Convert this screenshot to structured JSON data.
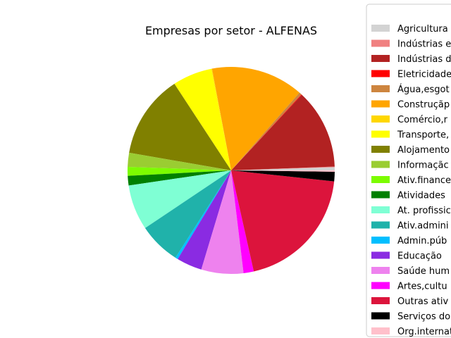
{
  "chart_data": {
    "type": "pie",
    "title": "Empresas por setor - ALFENAS",
    "legend_position": "right",
    "slices": [
      {
        "label": "Agricultura",
        "value": 0.5,
        "color": "#d3d3d3"
      },
      {
        "label": "Indústrias e",
        "value": 0.1,
        "color": "#f08080"
      },
      {
        "label": "Indústrias d",
        "value": 12.5,
        "color": "#b22222"
      },
      {
        "label": "Eletricidade",
        "value": 0.1,
        "color": "#ff0000"
      },
      {
        "label": "Água,esgot",
        "value": 0.4,
        "color": "#cd853f"
      },
      {
        "label": "Construçãp",
        "value": 14.5,
        "color": "#ffa500"
      },
      {
        "label": "Comércio,r",
        "value": 0.1,
        "color": "#ffd700"
      },
      {
        "label": "Transporte,",
        "value": 6.2,
        "color": "#ffff00"
      },
      {
        "label": "Alojamento",
        "value": 13.1,
        "color": "#808000"
      },
      {
        "label": "Informaçãc",
        "value": 2.2,
        "color": "#9acd32"
      },
      {
        "label": "Ativ.finance",
        "value": 1.4,
        "color": "#7cfc00"
      },
      {
        "label": "Atividades",
        "value": 1.5,
        "color": "#008000"
      },
      {
        "label": "At. profissic",
        "value": 7.1,
        "color": "#7fffd4"
      },
      {
        "label": "Ativ.admini",
        "value": 6.6,
        "color": "#20b2aa"
      },
      {
        "label": "Admin.púb",
        "value": 0.4,
        "color": "#00bfff"
      },
      {
        "label": "Educação",
        "value": 4.0,
        "color": "#8a2be2"
      },
      {
        "label": "Saúde hum",
        "value": 6.6,
        "color": "#ee82ee"
      },
      {
        "label": "Artes,cultu",
        "value": 1.6,
        "color": "#ff00ff"
      },
      {
        "label": "Outras ativ",
        "value": 19.9,
        "color": "#dc143c"
      },
      {
        "label": "Serviços do",
        "value": 1.5,
        "color": "#000000"
      },
      {
        "label": "Org.internat",
        "value": 0.2,
        "color": "#ffc0cb"
      }
    ]
  }
}
